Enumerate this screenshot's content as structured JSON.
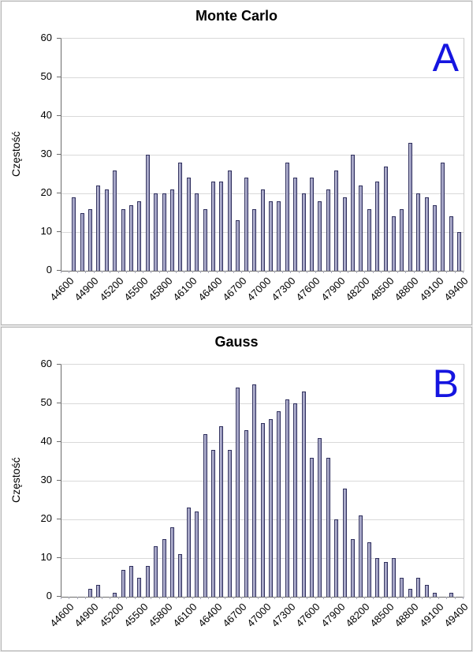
{
  "ui": {
    "y_axis_title": "Częstość"
  },
  "chart_data": [
    {
      "type": "bar",
      "title": "Monte Carlo",
      "panel_label": "A",
      "ylabel": "Częstość",
      "xlabel": "",
      "ylim": [
        0,
        60
      ],
      "ytick_step": 10,
      "grid": "horizontal",
      "legend": "none",
      "n_categories": 49,
      "x_first_category": 44600,
      "x_category_step": 100,
      "x_tick_every": 3,
      "x_tick_labels": [
        "44600",
        "44900",
        "45200",
        "45500",
        "45800",
        "46100",
        "46400",
        "46700",
        "47000",
        "47300",
        "47600",
        "47900",
        "48200",
        "48500",
        "48800",
        "49100",
        "49400"
      ],
      "values": [
        0,
        19,
        15,
        16,
        22,
        21,
        26,
        16,
        17,
        18,
        30,
        20,
        20,
        21,
        28,
        24,
        20,
        16,
        23,
        23,
        26,
        13,
        24,
        16,
        21,
        18,
        18,
        28,
        24,
        20,
        24,
        18,
        21,
        26,
        19,
        30,
        22,
        16,
        23,
        27,
        14,
        16,
        33,
        20,
        19,
        17,
        28,
        14,
        10
      ],
      "bar_color": "#9c9cc0",
      "bar_border_color": "#30305e",
      "panel_label_color": "#1515e0"
    },
    {
      "type": "bar",
      "title": "Gauss",
      "panel_label": "B",
      "ylabel": "Częstość",
      "xlabel": "",
      "ylim": [
        0,
        60
      ],
      "ytick_step": 10,
      "grid": "horizontal",
      "legend": "none",
      "n_categories": 49,
      "x_first_category": 44600,
      "x_category_step": 100,
      "x_tick_every": 3,
      "x_tick_labels": [
        "44600",
        "44900",
        "45200",
        "45500",
        "45800",
        "46100",
        "46400",
        "46700",
        "47000",
        "47300",
        "47600",
        "47900",
        "48200",
        "48500",
        "48800",
        "49100",
        "49400"
      ],
      "values": [
        0,
        0,
        0,
        2,
        3,
        0,
        1,
        7,
        8,
        5,
        8,
        13,
        15,
        18,
        11,
        23,
        22,
        42,
        38,
        44,
        38,
        54,
        43,
        55,
        45,
        46,
        48,
        51,
        50,
        53,
        36,
        41,
        36,
        20,
        28,
        15,
        21,
        14,
        10,
        9,
        10,
        5,
        2,
        5,
        3,
        1,
        0,
        1,
        0
      ],
      "bar_color": "#9c9cc0",
      "bar_border_color": "#30305e",
      "panel_label_color": "#1515e0"
    }
  ]
}
